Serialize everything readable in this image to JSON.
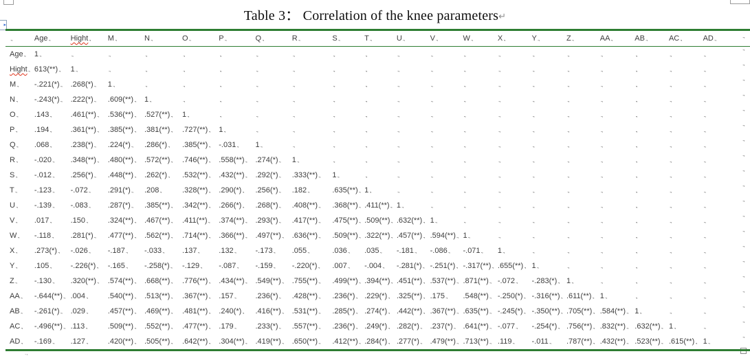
{
  "title": {
    "text": "Table 3：  Correlation of the knee parameters",
    "paragraph_mark": "↵"
  },
  "marks": {
    "cell_end": ".,",
    "scroll_arrow": "▸",
    "below_table": ".,"
  },
  "accent_colors": {
    "table_border_green": "#2e7d32",
    "spellcheck_red": "#e0331a",
    "text": "#3d3d3d"
  },
  "table": {
    "columns": [
      "",
      "Age",
      "Hight",
      "M",
      "N",
      "O",
      "P",
      "Q",
      "R",
      "S",
      "T",
      "U",
      "V",
      "W",
      "X",
      "Y",
      "Z",
      "AA",
      "AB",
      "AC",
      "AD"
    ],
    "misspelled_labels": [
      "Hight"
    ],
    "rows": [
      {
        "label": "Age",
        "values": [
          "1"
        ]
      },
      {
        "label": "Hight",
        "values": [
          "613(**)",
          "1"
        ]
      },
      {
        "label": "M",
        "values": [
          "-.221(*)",
          ".268(*)",
          "1"
        ]
      },
      {
        "label": "N",
        "values": [
          "-.243(*)",
          ".222(*)",
          ".609(**)",
          "1"
        ]
      },
      {
        "label": "O",
        "values": [
          ".143",
          ".461(**)",
          ".536(**)",
          ".527(**)",
          "1"
        ]
      },
      {
        "label": "P",
        "values": [
          ".194",
          ".361(**)",
          ".385(**)",
          ".381(**)",
          ".727(**)",
          "1"
        ]
      },
      {
        "label": "Q",
        "values": [
          ".068",
          ".238(*)",
          ".224(*)",
          ".286(*)",
          ".385(**)",
          "-.031",
          "1"
        ]
      },
      {
        "label": "R",
        "values": [
          "-.020",
          ".348(**)",
          ".480(**)",
          ".572(**)",
          ".746(**)",
          ".558(**)",
          ".274(*)",
          "1"
        ]
      },
      {
        "label": "S",
        "values": [
          "-.012",
          ".256(*)",
          ".448(**)",
          ".262(*)",
          ".532(**)",
          ".432(**)",
          ".292(*)",
          ".333(**)",
          "1"
        ]
      },
      {
        "label": "T",
        "values": [
          "-.123",
          "-.072",
          ".291(*)",
          ".208",
          ".328(**)",
          ".290(*)",
          ".256(*)",
          ".182",
          ".635(**)",
          "1"
        ]
      },
      {
        "label": "U",
        "values": [
          "-.139",
          "-.083",
          ".287(*)",
          ".385(**)",
          ".342(**)",
          ".266(*)",
          ".268(*)",
          ".408(**)",
          ".368(**)",
          ".411(**)",
          "1"
        ]
      },
      {
        "label": "V",
        "values": [
          ".017",
          ".150",
          ".324(**)",
          ".467(**)",
          ".411(**)",
          ".374(**)",
          ".293(*)",
          ".417(**)",
          ".475(**)",
          ".509(**)",
          ".632(**)",
          "1"
        ]
      },
      {
        "label": "W",
        "values": [
          "-.118",
          ".281(*)",
          ".477(**)",
          ".562(**)",
          ".714(**)",
          ".366(**)",
          ".497(**)",
          ".636(**)",
          ".509(**)",
          ".322(**)",
          ".457(**)",
          ".594(**)",
          "1"
        ]
      },
      {
        "label": "X",
        "values": [
          ".273(*)",
          "-.026",
          "-.187",
          "-.033",
          ".137",
          ".132",
          "-.173",
          ".055",
          ".036",
          ".035",
          "-.181",
          "-.086",
          "-.071",
          "1"
        ]
      },
      {
        "label": "Y",
        "values": [
          ".105",
          "-.226(*)",
          "-.165",
          "-.258(*)",
          "-.129",
          "-.087",
          "-.159",
          "-.220(*)",
          ".007",
          "-.004",
          "-.281(*)",
          "-.251(*)",
          "-.317(**)",
          ".655(**)",
          "1"
        ]
      },
      {
        "label": "Z",
        "values": [
          "-.130",
          ".320(**)",
          ".574(**)",
          ".668(**)",
          ".776(**)",
          ".434(**)",
          ".549(**)",
          ".755(**)",
          ".499(**)",
          ".394(**)",
          ".451(**)",
          ".537(**)",
          ".871(**)",
          "-.072",
          "-.283(*)",
          "1"
        ]
      },
      {
        "label": "AA",
        "values": [
          "-.644(**)",
          ".004",
          ".540(**)",
          ".513(**)",
          ".367(**)",
          ".157",
          ".236(*)",
          ".428(**)",
          ".236(*)",
          ".229(*)",
          ".325(**)",
          ".175",
          ".548(**)",
          "-.250(*)",
          "-.316(**)",
          ".611(**)",
          "1"
        ]
      },
      {
        "label": "AB",
        "values": [
          "-.261(*)",
          ".029",
          ".457(**)",
          ".469(**)",
          ".481(**)",
          ".240(*)",
          ".416(**)",
          ".531(**)",
          ".285(*)",
          ".274(*)",
          ".442(**)",
          ".367(**)",
          ".635(**)",
          "-.245(*)",
          "-.350(**)",
          ".705(**)",
          ".584(**)",
          "1"
        ]
      },
      {
        "label": "AC",
        "values": [
          "-.496(**)",
          ".113",
          ".509(**)",
          ".552(**)",
          ".477(**)",
          ".179",
          ".233(*)",
          ".557(**)",
          ".236(*)",
          ".249(*)",
          ".282(*)",
          ".237(*)",
          ".641(**)",
          "-.077",
          "-.254(*)",
          ".756(**)",
          ".832(**)",
          ".632(**)",
          "1"
        ]
      },
      {
        "label": "AD",
        "values": [
          "-.169",
          ".127",
          ".420(**)",
          ".505(**)",
          ".642(**)",
          ".304(**)",
          ".419(**)",
          ".650(**)",
          ".412(**)",
          ".284(*)",
          ".277(*)",
          ".479(**)",
          ".713(**)",
          ".119",
          "-.011",
          ".787(**)",
          ".432(**)",
          ".523(**)",
          ".615(**)",
          "1"
        ]
      }
    ]
  }
}
